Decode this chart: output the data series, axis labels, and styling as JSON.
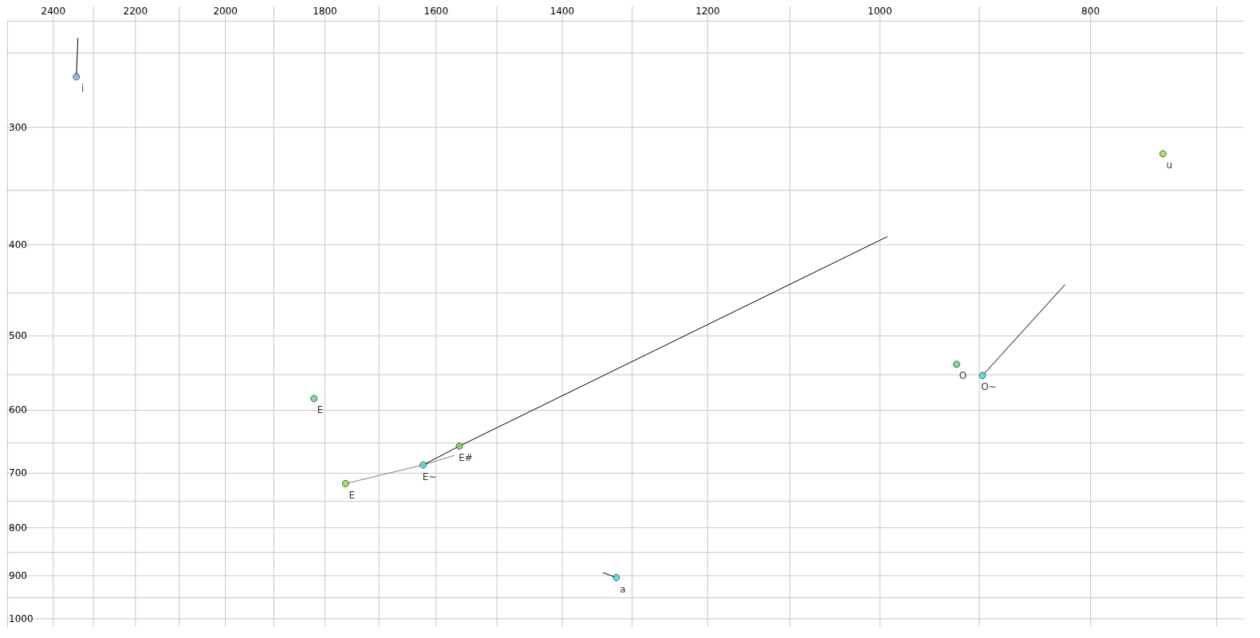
{
  "chart_data": {
    "type": "scatter",
    "log": "xy",
    "grid": true,
    "marker": "circle",
    "xlim": [
      2520,
      680
    ],
    "ylim": [
      1020,
      231
    ],
    "xticks": [
      2400,
      {
        "value": 2300,
        "label": null
      },
      2200,
      {
        "value": 2100,
        "label": null
      },
      2000,
      {
        "value": 1900,
        "label": null
      },
      1800,
      {
        "value": 1700,
        "label": null
      },
      1600,
      {
        "value": 1500,
        "label": null
      },
      1400,
      {
        "value": 1300,
        "label": null
      },
      1200,
      {
        "value": 1100,
        "label": null
      },
      1000,
      {
        "value": 900,
        "label": null
      },
      800,
      {
        "value": 700,
        "label": null
      }
    ],
    "yticks": [
      {
        "value": 250,
        "label": null
      },
      300,
      {
        "value": 350,
        "label": null
      },
      400,
      {
        "value": 450,
        "label": null
      },
      500,
      {
        "value": 550,
        "label": null
      },
      600,
      {
        "value": 650,
        "label": null
      },
      700,
      {
        "value": 750,
        "label": null
      },
      800,
      {
        "value": 850,
        "label": null
      },
      900,
      {
        "value": 950,
        "label": null
      },
      1000
    ],
    "series": [
      {
        "type": "line",
        "marker": "none",
        "color": "#000000",
        "x": [
          2338,
          2342
        ],
        "values": [
          241,
          265
        ]
      },
      {
        "type": "line",
        "marker": "none",
        "color": "#000000",
        "x": [
          1622,
          1561,
          992
        ],
        "values": [
          686,
          655,
          392
        ]
      },
      {
        "type": "line",
        "marker": "none",
        "color": "#808080",
        "x": [
          1761,
          1622,
          1569
        ],
        "values": [
          718,
          686,
          670
        ]
      },
      {
        "type": "line",
        "marker": "none",
        "color": "#000000",
        "x": [
          897,
          822
        ],
        "values": [
          551,
          441
        ]
      },
      {
        "type": "line",
        "marker": "none",
        "color": "#000000",
        "x": [
          1341,
          1322
        ],
        "values": [
          893,
          904
        ]
      },
      {
        "x": [
          2342,
          741,
          1821,
          1761,
          1622,
          1561,
          922,
          897,
          1322
        ],
        "values": [
          265,
          320,
          583,
          718,
          686,
          655,
          536,
          551,
          904
        ],
        "colors": [
          "#8fa7ef",
          "#8fe03f",
          "#4fe07f",
          "#8fe03f",
          "#3fdfdf",
          "#6fe03f",
          "#4fe07f",
          "#3fdfdf",
          "#3fdfdf"
        ],
        "value_labels": [
          "i",
          "u",
          "E",
          "E",
          "E~",
          "E#",
          "O",
          "O~",
          "a"
        ]
      }
    ]
  }
}
